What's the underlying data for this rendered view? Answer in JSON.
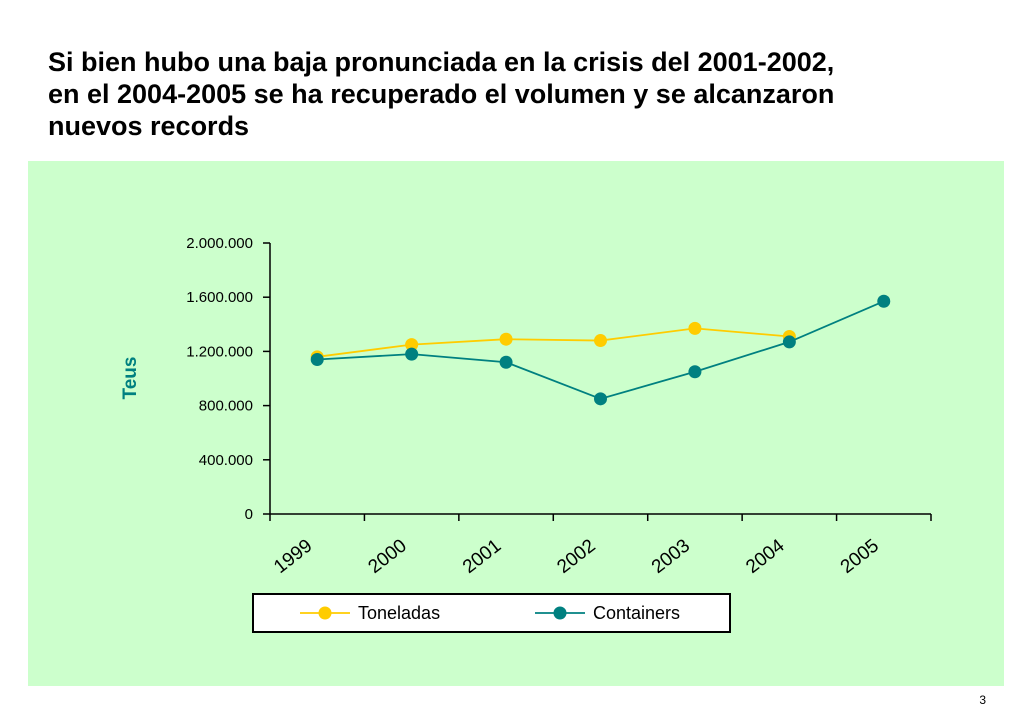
{
  "slide": {
    "title_lines": [
      "Si bien hubo una baja pronunciada en la crisis del 2001-2002,",
      "en el 2004-2005 se ha recuperado el volumen y se alcanzaron",
      "nuevos records"
    ],
    "page_number": "3"
  },
  "colors": {
    "panel_background": "#ccffcc",
    "toneladas": "#ffcc00",
    "containers": "#008080",
    "ylabel": "#008080"
  },
  "chart_data": {
    "type": "line",
    "ylabel": "Teus",
    "xlabel": "",
    "categories": [
      "1999",
      "2000",
      "2001",
      "2002",
      "2003",
      "2004",
      "2005"
    ],
    "ylim": [
      0,
      2000000
    ],
    "yticks": [
      0,
      400000,
      800000,
      1200000,
      1600000,
      2000000
    ],
    "ytick_labels": [
      "0",
      "400.000",
      "800.000",
      "1.200.000",
      "1.600.000",
      "2.000.000"
    ],
    "series": [
      {
        "name": "Toneladas",
        "color": "#ffcc00",
        "values": [
          1160000,
          1250000,
          1290000,
          1280000,
          1370000,
          1310000,
          null
        ]
      },
      {
        "name": "Containers",
        "color": "#008080",
        "values": [
          1140000,
          1180000,
          1120000,
          850000,
          1050000,
          1270000,
          1570000
        ]
      }
    ],
    "legend_position": "bottom",
    "grid": false
  }
}
